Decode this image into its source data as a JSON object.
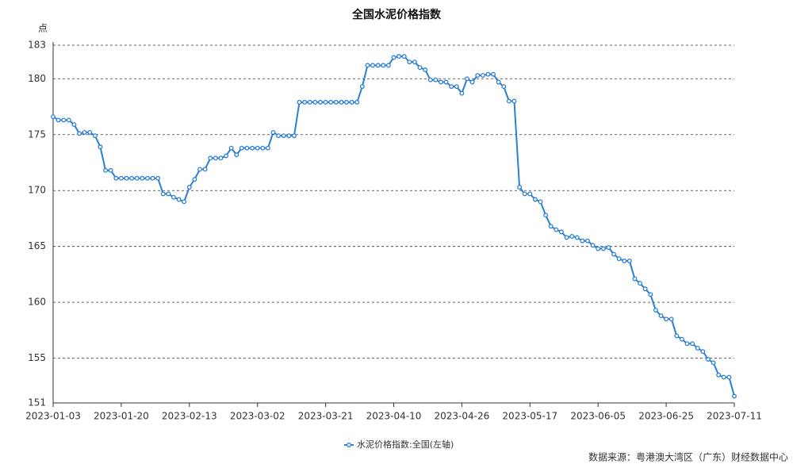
{
  "chart_data": {
    "type": "line",
    "title": "全国水泥价格指数",
    "y_label": "点",
    "categories": [
      "2023-01-03",
      null,
      null,
      null,
      null,
      null,
      null,
      null,
      null,
      null,
      null,
      null,
      null,
      "2023-01-20",
      null,
      null,
      null,
      null,
      null,
      null,
      null,
      null,
      null,
      null,
      null,
      null,
      "2023-02-13",
      null,
      null,
      null,
      null,
      null,
      null,
      null,
      null,
      null,
      null,
      null,
      null,
      "2023-03-02",
      null,
      null,
      null,
      null,
      null,
      null,
      null,
      null,
      null,
      null,
      null,
      null,
      "2023-03-21",
      null,
      null,
      null,
      null,
      null,
      null,
      null,
      null,
      null,
      null,
      null,
      null,
      "2023-04-10",
      null,
      null,
      null,
      null,
      null,
      null,
      null,
      null,
      null,
      null,
      null,
      null,
      "2023-04-26",
      null,
      null,
      null,
      null,
      null,
      null,
      null,
      null,
      null,
      null,
      null,
      null,
      "2023-05-17",
      null,
      null,
      null,
      null,
      null,
      null,
      null,
      null,
      null,
      null,
      null,
      null,
      "2023-06-05",
      null,
      null,
      null,
      null,
      null,
      null,
      null,
      null,
      null,
      null,
      null,
      null,
      "2023-06-25",
      null,
      null,
      null,
      null,
      null,
      null,
      null,
      null,
      null,
      null,
      null,
      null,
      "2023-07-11"
    ],
    "series": [
      {
        "name": "水泥价格指数:全国(左轴)",
        "color": "#2a7fd4",
        "values": [
          176.6,
          176.3,
          176.3,
          176.3,
          175.9,
          175.1,
          175.2,
          175.2,
          174.9,
          173.9,
          171.8,
          171.8,
          171.1,
          171.1,
          171.1,
          171.1,
          171.1,
          171.1,
          171.1,
          171.1,
          171.1,
          169.7,
          169.7,
          169.4,
          169.2,
          169.0,
          170.3,
          171.0,
          171.9,
          171.9,
          172.9,
          172.9,
          172.9,
          173.1,
          173.8,
          173.2,
          173.8,
          173.8,
          173.8,
          173.8,
          173.8,
          173.8,
          175.2,
          174.9,
          174.9,
          174.9,
          174.9,
          177.9,
          177.9,
          177.9,
          177.9,
          177.9,
          177.9,
          177.9,
          177.9,
          177.9,
          177.9,
          177.9,
          177.9,
          179.3,
          181.2,
          181.2,
          181.2,
          181.2,
          181.2,
          181.9,
          182.0,
          182.0,
          181.5,
          181.5,
          181.0,
          180.8,
          179.9,
          179.9,
          179.7,
          179.7,
          179.3,
          179.3,
          178.7,
          180.0,
          179.7,
          180.3,
          180.3,
          180.4,
          180.4,
          179.7,
          179.3,
          178.0,
          178.0,
          170.3,
          169.7,
          169.7,
          169.2,
          169.0,
          167.8,
          166.8,
          166.5,
          166.3,
          165.8,
          165.9,
          165.8,
          165.5,
          165.5,
          165.1,
          164.8,
          164.8,
          164.9,
          164.3,
          163.9,
          163.7,
          163.7,
          162.1,
          161.7,
          161.2,
          160.7,
          159.3,
          158.8,
          158.5,
          158.5,
          157.0,
          156.7,
          156.3,
          156.3,
          155.9,
          155.6,
          154.9,
          154.6,
          153.5,
          153.3,
          153.3,
          151.6
        ]
      }
    ],
    "ylim": [
      151,
      183
    ],
    "yticks": [
      151,
      155,
      160,
      165,
      170,
      175,
      180,
      183
    ],
    "grid": true,
    "legend": "bottom",
    "source": "数据来源：粤港澳大湾区（广东）财经数据中心"
  }
}
